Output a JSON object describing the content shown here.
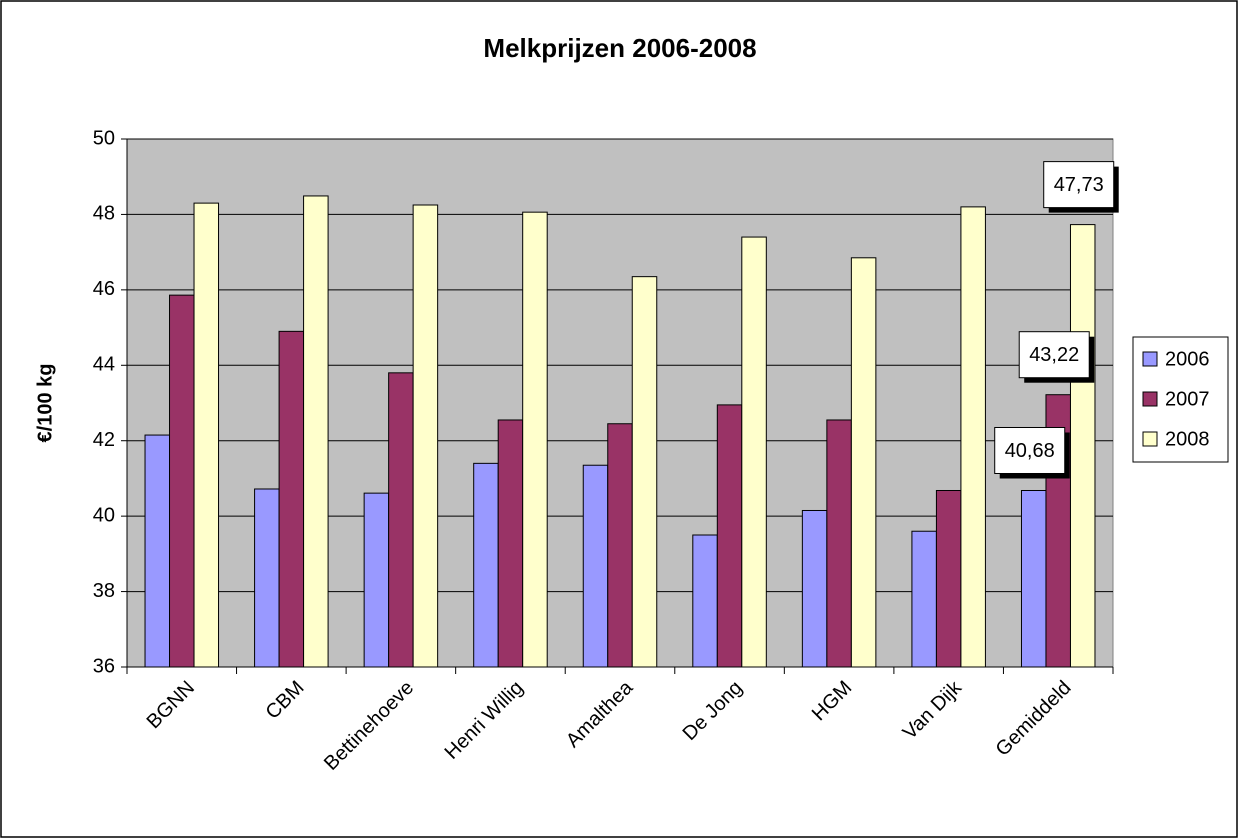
{
  "chart_data": {
    "type": "bar",
    "title": "Melkprijzen 2006-2008",
    "y_label": "€/100 kg",
    "categories": [
      "BGNN",
      "CBM",
      "Bettinehoeve",
      "Henri Willig",
      "Amalthea",
      "De Jong",
      "HGM",
      "Van Dijk",
      "Gemiddeld"
    ],
    "series": [
      {
        "name": "2006",
        "color": "#9999ff",
        "values": [
          42.15,
          40.72,
          40.61,
          41.4,
          41.35,
          39.5,
          40.15,
          39.6,
          40.68
        ],
        "value_labels": [
          null,
          null,
          null,
          null,
          null,
          null,
          null,
          null,
          "40,68"
        ]
      },
      {
        "name": "2007",
        "color": "#993366",
        "values": [
          45.86,
          44.9,
          43.8,
          42.55,
          42.45,
          42.95,
          42.55,
          40.68,
          43.22
        ],
        "value_labels": [
          null,
          null,
          null,
          null,
          null,
          null,
          null,
          null,
          "43,22"
        ]
      },
      {
        "name": "2008",
        "color": "#ffffcc",
        "values": [
          48.3,
          48.49,
          48.25,
          48.06,
          46.35,
          47.4,
          46.85,
          48.2,
          47.73
        ],
        "value_labels": [
          null,
          null,
          null,
          null,
          null,
          null,
          null,
          null,
          "47,73"
        ]
      }
    ],
    "ylim": [
      36,
      50
    ],
    "yticks": [
      36,
      38,
      40,
      42,
      44,
      46,
      48,
      50
    ],
    "grid": true,
    "legend": "right"
  }
}
